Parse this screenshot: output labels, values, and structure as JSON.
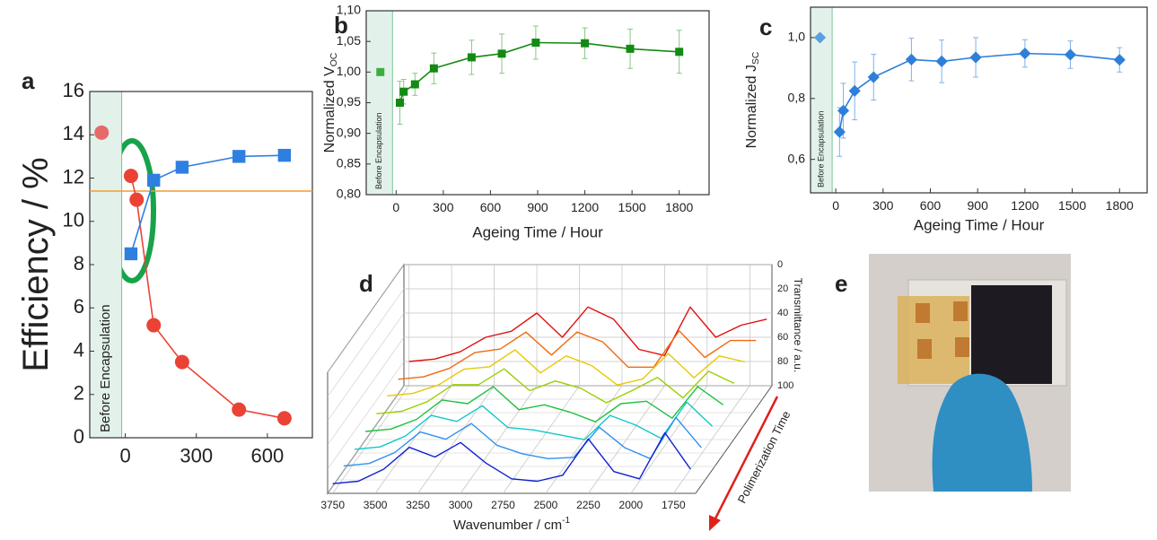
{
  "chart_data": [
    {
      "type": "line",
      "panel": "a",
      "ylabel": "Efficiency / %",
      "annotation": "Before Encapsulation",
      "xlim": [
        -150,
        790
      ],
      "xticks": [
        0,
        300,
        600
      ],
      "ylim": [
        0,
        16
      ],
      "yticks": [
        0,
        2,
        4,
        6,
        8,
        10,
        12,
        14,
        16
      ],
      "reference_line": {
        "value": 11.4,
        "color": "#f39c34"
      },
      "series": [
        {
          "x": [
            -100
          ],
          "values": [
            14.1
          ],
          "color": "#e66a6a",
          "marker": "circle",
          "line": false
        },
        {
          "x": [
            24,
            48,
            120,
            240,
            480,
            672
          ],
          "values": [
            12.1,
            11.0,
            5.2,
            3.5,
            1.3,
            0.9
          ],
          "color": "#ea4335",
          "marker": "circle",
          "line": true
        },
        {
          "x": [
            24,
            120,
            240,
            480,
            672
          ],
          "values": [
            8.5,
            11.9,
            12.5,
            13.0,
            13.05
          ],
          "color": "#2f7fe0",
          "marker": "square",
          "line": true
        }
      ]
    },
    {
      "type": "line",
      "panel": "b",
      "ylabel": "Normalized V",
      "ylabel_sub": "OC",
      "xlabel": "Ageing Time / Hour",
      "annotation": "Before Encapsulation",
      "xlim": [
        -190,
        1990
      ],
      "xticks": [
        0,
        300,
        600,
        900,
        1200,
        1500,
        1800
      ],
      "ylim": [
        0.8,
        1.1
      ],
      "yticks": [
        {
          "value": 0.8,
          "label": "0,80"
        },
        {
          "value": 0.85,
          "label": "0,85"
        },
        {
          "value": 0.9,
          "label": "0,90"
        },
        {
          "value": 0.95,
          "label": "0,95"
        },
        {
          "value": 1.0,
          "label": "1,00"
        },
        {
          "value": 1.05,
          "label": "1,05"
        },
        {
          "value": 1.1,
          "label": "1,10"
        }
      ],
      "error_color": "#86c886",
      "series": [
        {
          "x": [
            -100
          ],
          "values": [
            1.0
          ],
          "color": "#3dae3d",
          "marker": "square",
          "line": false
        },
        {
          "x": [
            24,
            48,
            120,
            240,
            480,
            672,
            888,
            1200,
            1488,
            1800
          ],
          "values": [
            0.95,
            0.968,
            0.98,
            1.006,
            1.024,
            1.03,
            1.048,
            1.047,
            1.038,
            1.033
          ],
          "errors": [
            0.035,
            0.02,
            0.018,
            0.025,
            0.028,
            0.032,
            0.027,
            0.025,
            0.032,
            0.035
          ],
          "color": "#138a13",
          "marker": "square",
          "line": true
        }
      ]
    },
    {
      "type": "line",
      "panel": "c",
      "ylabel": "Normalized J",
      "ylabel_sub": "SC",
      "xlabel": "Ageing Time / Hour",
      "annotation": "Before Encapsulation",
      "xlim": [
        -160,
        1975
      ],
      "xticks": [
        0,
        300,
        600,
        900,
        1200,
        1500,
        1800
      ],
      "ylim": [
        0.49,
        1.1
      ],
      "yticks": [
        {
          "value": 0.6,
          "label": "0,6"
        },
        {
          "value": 0.8,
          "label": "0,8"
        },
        {
          "value": 1.0,
          "label": "1,0"
        }
      ],
      "error_color": "#7fb2ea",
      "series": [
        {
          "x": [
            -100
          ],
          "values": [
            1.0
          ],
          "color": "#5aa0e0",
          "marker": "diamond",
          "line": false
        },
        {
          "x": [
            24,
            48,
            120,
            240,
            480,
            672,
            888,
            1200,
            1488,
            1800
          ],
          "values": [
            0.69,
            0.76,
            0.825,
            0.87,
            0.928,
            0.922,
            0.935,
            0.948,
            0.944,
            0.927
          ],
          "errors": [
            0.08,
            0.09,
            0.095,
            0.075,
            0.07,
            0.07,
            0.065,
            0.045,
            0.045,
            0.04
          ],
          "color": "#2e7fd9",
          "marker": "diamond",
          "line": true
        }
      ]
    },
    {
      "type": "waterfall",
      "panel": "d",
      "xlabel": "Wavenumber / cm",
      "xlabel_sup": "-1",
      "ylabel": "Transmittance / a.u.",
      "zlabel": "Polimerization Time",
      "x": [
        3750,
        3600,
        3450,
        3300,
        3150,
        3000,
        2850,
        2700,
        2550,
        2400,
        2250,
        2100,
        1950,
        1800,
        1650
      ],
      "xlim": [
        3780,
        1620
      ],
      "xticks": [
        3750,
        3500,
        3250,
        3000,
        2750,
        2500,
        2250,
        2000,
        1750
      ],
      "ylim": [
        0,
        100
      ],
      "yticks": [
        0,
        20,
        40,
        60,
        80,
        100
      ],
      "series": [
        {
          "color": "#e01010",
          "values": [
            80,
            78,
            72,
            60,
            55,
            40,
            60,
            35,
            45,
            70,
            75,
            35,
            60,
            50,
            45
          ]
        },
        {
          "color": "#f06a10",
          "values": [
            82,
            80,
            73,
            60,
            57,
            43,
            62,
            43,
            51,
            72,
            72,
            42,
            64,
            50,
            50
          ]
        },
        {
          "color": "#e8c800",
          "values": [
            83,
            81,
            74,
            61,
            59,
            45,
            64,
            50,
            58,
            74,
            69,
            48,
            68,
            50,
            55
          ]
        },
        {
          "color": "#9ad000",
          "values": [
            85,
            83,
            75,
            61,
            61,
            48,
            66,
            58,
            64,
            76,
            66,
            55,
            72,
            50,
            60
          ]
        },
        {
          "color": "#20c040",
          "values": [
            87,
            85,
            77,
            61,
            64,
            50,
            69,
            65,
            71,
            79,
            64,
            62,
            76,
            50,
            65
          ]
        },
        {
          "color": "#10c8c8",
          "values": [
            89,
            87,
            78,
            61,
            66,
            53,
            71,
            73,
            77,
            81,
            61,
            69,
            80,
            50,
            70
          ]
        },
        {
          "color": "#3090f0",
          "values": [
            90,
            88,
            79,
            62,
            68,
            55,
            73,
            80,
            84,
            83,
            58,
            75,
            84,
            50,
            75
          ]
        },
        {
          "color": "#1020d0",
          "values": [
            92,
            90,
            80,
            62,
            70,
            58,
            75,
            88,
            90,
            85,
            55,
            82,
            88,
            50,
            80
          ]
        }
      ]
    }
  ],
  "image_panel": {
    "panel": "e"
  }
}
